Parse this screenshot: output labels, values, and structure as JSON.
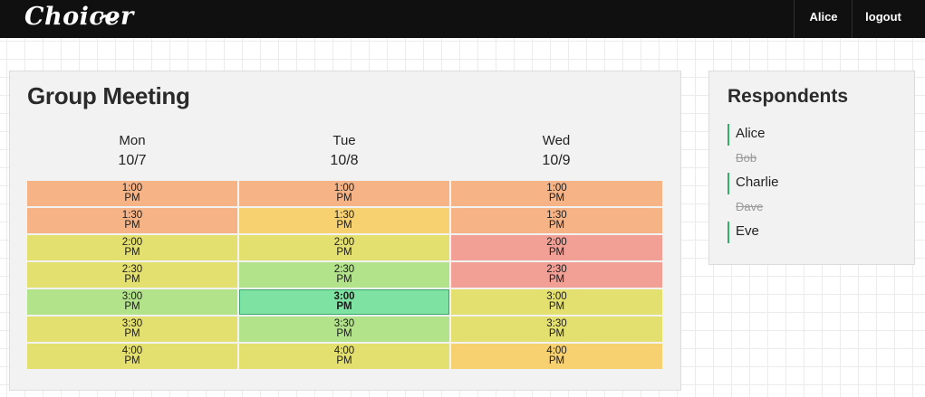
{
  "header": {
    "logo": "Choicer",
    "user": "Alice",
    "logout": "logout"
  },
  "meeting": {
    "title": "Group Meeting",
    "days": [
      {
        "name": "Mon",
        "date": "10/7"
      },
      {
        "name": "Tue",
        "date": "10/8"
      },
      {
        "name": "Wed",
        "date": "10/9"
      }
    ],
    "slots": [
      [
        "1:00",
        "1:30",
        "2:00",
        "2:30",
        "3:00",
        "3:30",
        "4:00"
      ],
      [
        "1:00",
        "1:30",
        "2:00",
        "2:30",
        "3:00",
        "3:30",
        "4:00"
      ],
      [
        "1:00",
        "1:30",
        "2:00",
        "2:30",
        "3:00",
        "3:30",
        "4:00"
      ]
    ],
    "period": "PM",
    "availability": [
      [
        "orange",
        "orange",
        "yellow",
        "yellow",
        "lime",
        "yellow",
        "yellow"
      ],
      [
        "orange",
        "amber",
        "yellow",
        "lime",
        "green",
        "lime",
        "yellow"
      ],
      [
        "orange",
        "orange",
        "red",
        "red",
        "yellow",
        "yellow",
        "amber"
      ]
    ],
    "selected": {
      "day": 1,
      "slot": 4
    }
  },
  "respondents": {
    "title": "Respondents",
    "list": [
      {
        "name": "Alice",
        "responded": true
      },
      {
        "name": "Bob",
        "responded": false
      },
      {
        "name": "Charlie",
        "responded": true
      },
      {
        "name": "Dave",
        "responded": false
      },
      {
        "name": "Eve",
        "responded": true
      }
    ]
  },
  "colors": {
    "orange": "#f6b386",
    "amber": "#f7d070",
    "yellow": "#e4e070",
    "lime": "#b2e28a",
    "red": "#f29f96",
    "green": "#7ee2a2",
    "topbar": "#101010",
    "respondent_marker": "#33b06a"
  }
}
